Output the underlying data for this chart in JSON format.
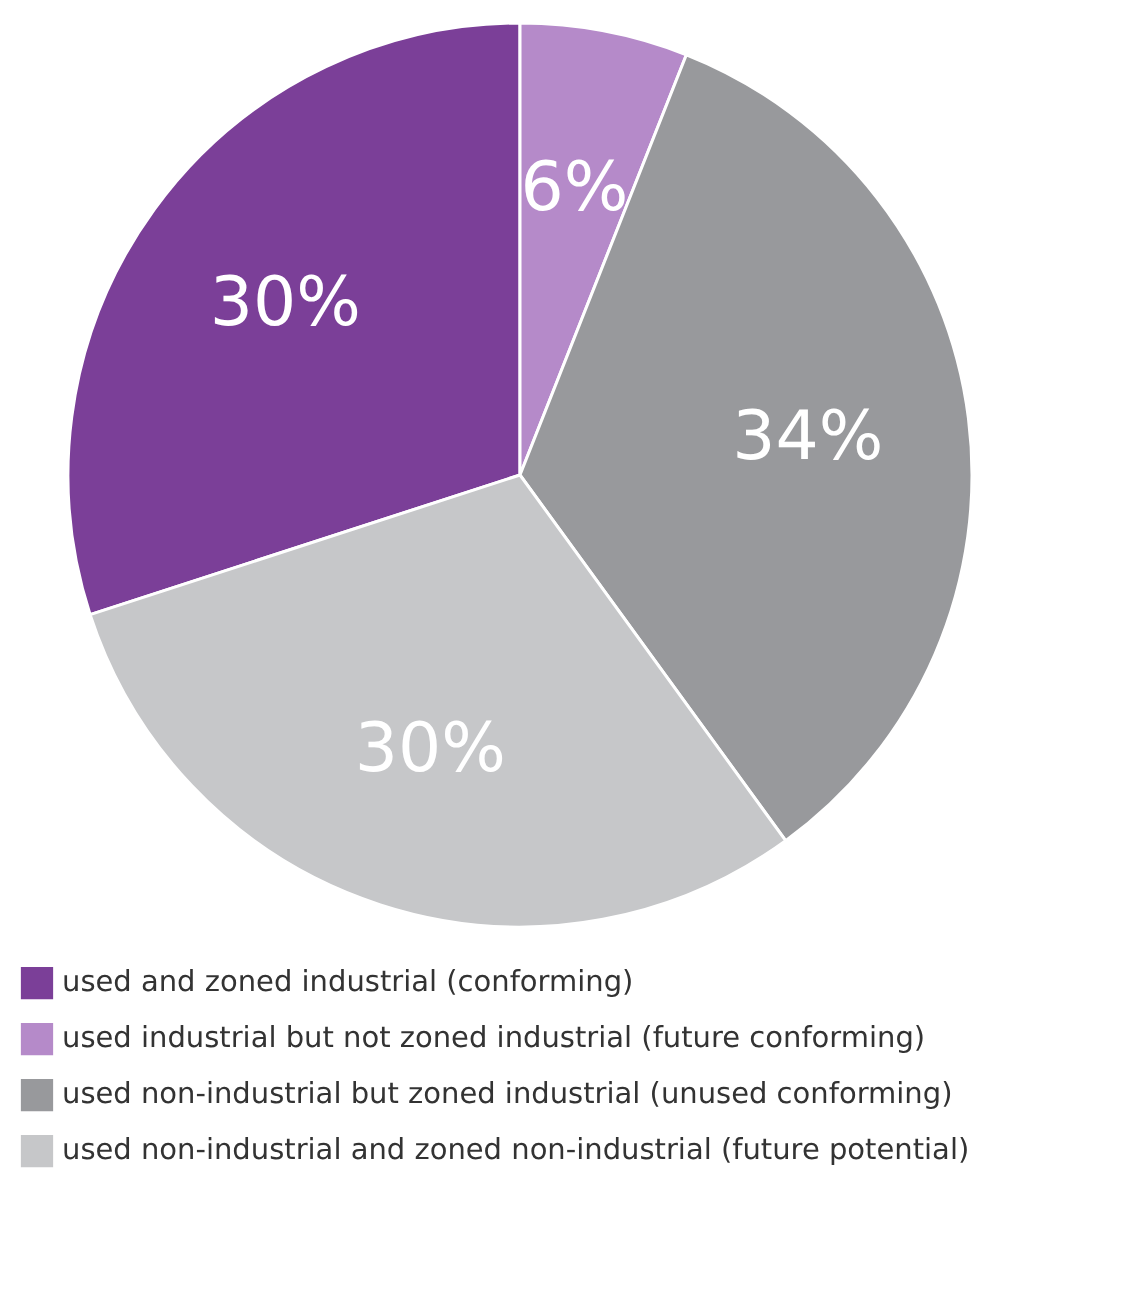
{
  "chart_data": {
    "type": "pie",
    "categories": [
      "used and zoned industrial (conforming)",
      "used industrial but not zoned industrial (future conforming)",
      "used non-industrial but zoned industrial (unused conforming)",
      "used non-industrial and zoned non-industrial (future potential)"
    ],
    "values": [
      30,
      6,
      34,
      30
    ],
    "colors": [
      "#7b3f98",
      "#b58ac9",
      "#98999c",
      "#c6c7c9"
    ],
    "value_labels": [
      "30%",
      "6%",
      "34%",
      "30%"
    ],
    "legend": "bottom"
  }
}
